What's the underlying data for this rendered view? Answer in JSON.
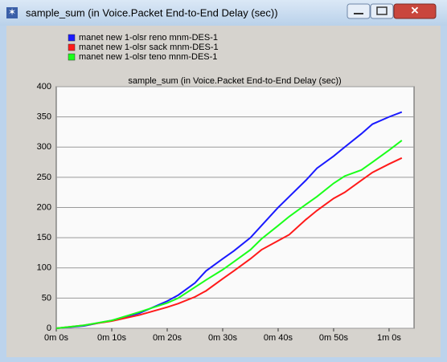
{
  "window_title": "sample_sum (in Voice.Packet End-to-End Delay (sec))",
  "chart_data": {
    "type": "line",
    "title": "sample_sum (in Voice.Packet End-to-End Delay (sec))",
    "x": [
      0,
      5,
      10,
      15,
      20,
      22,
      25,
      27,
      30,
      32,
      35,
      37,
      40,
      42,
      45,
      47,
      50,
      52,
      55,
      57,
      60,
      62.3
    ],
    "series": [
      {
        "name": "manet new 1-olsr reno mnm-DES-1",
        "color": "#1a1aff",
        "values": [
          0,
          4,
          13,
          25,
          45,
          55,
          75,
          95,
          115,
          128,
          150,
          170,
          200,
          218,
          245,
          265,
          285,
          300,
          322,
          338,
          350,
          358
        ]
      },
      {
        "name": "manet new 1-olsr sack mnm-DES-1",
        "color": "#ff1a1a",
        "values": [
          0,
          5,
          12,
          22,
          35,
          41,
          52,
          62,
          82,
          95,
          115,
          130,
          145,
          155,
          180,
          195,
          215,
          225,
          245,
          258,
          272,
          282
        ]
      },
      {
        "name": "manet new 1-olsr teno mnm-DES-1",
        "color": "#1aff1a",
        "values": [
          0,
          5,
          13,
          27,
          42,
          50,
          68,
          80,
          97,
          110,
          130,
          148,
          170,
          185,
          205,
          218,
          240,
          252,
          262,
          275,
          295,
          311
        ]
      }
    ],
    "xlim": [
      0,
      64.5
    ],
    "xticks": [
      {
        "value": 0,
        "label": "0m 0s"
      },
      {
        "value": 10,
        "label": "0m 10s"
      },
      {
        "value": 20,
        "label": "0m 20s"
      },
      {
        "value": 30,
        "label": "0m 30s"
      },
      {
        "value": 40,
        "label": "0m 40s"
      },
      {
        "value": 50,
        "label": "0m 50s"
      },
      {
        "value": 60,
        "label": "1m 0s"
      }
    ],
    "ylim": [
      0,
      400
    ],
    "yticks": [
      0,
      50,
      100,
      150,
      200,
      250,
      300,
      350,
      400
    ],
    "grid": true
  }
}
